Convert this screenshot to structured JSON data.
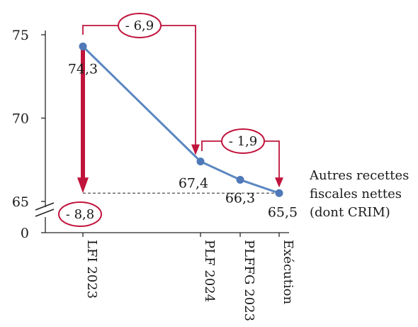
{
  "chart_data": {
    "type": "line",
    "title": "",
    "xlabel": "",
    "ylabel": "",
    "categories": [
      "LFI 2023",
      "PLF 2024",
      "PLFFG 2023",
      "Exécution"
    ],
    "series": [
      {
        "name": "Autres recettes fiscales nettes (dont CRIM)",
        "values": [
          74.3,
          67.4,
          66.3,
          65.5
        ],
        "value_labels": [
          "74,3",
          "67,4",
          "66,3",
          "65,5"
        ]
      }
    ],
    "y_axis": {
      "ticks": [
        0,
        65,
        70,
        75
      ],
      "tick_labels": [
        "0",
        "65",
        "70",
        "75"
      ],
      "broken_axis": true
    },
    "legend_lines": [
      "Autres recettes",
      "fiscales nettes",
      "(dont CRIM)"
    ],
    "legend_position": "right",
    "grid": false,
    "reference_line": {
      "value": 65.5
    },
    "annotations": [
      {
        "label": "- 6,9",
        "from": "LFI 2023",
        "to": "PLF 2024"
      },
      {
        "label": "- 1,9",
        "from": "PLF 2024",
        "to": "Exécution"
      },
      {
        "label": "- 8,8",
        "from": "LFI 2023",
        "to": "Exécution"
      }
    ],
    "colors": {
      "line": "#5b87c0",
      "marker": "#4f79b8",
      "annotation": "#c0143c",
      "axis": "#262626"
    }
  }
}
